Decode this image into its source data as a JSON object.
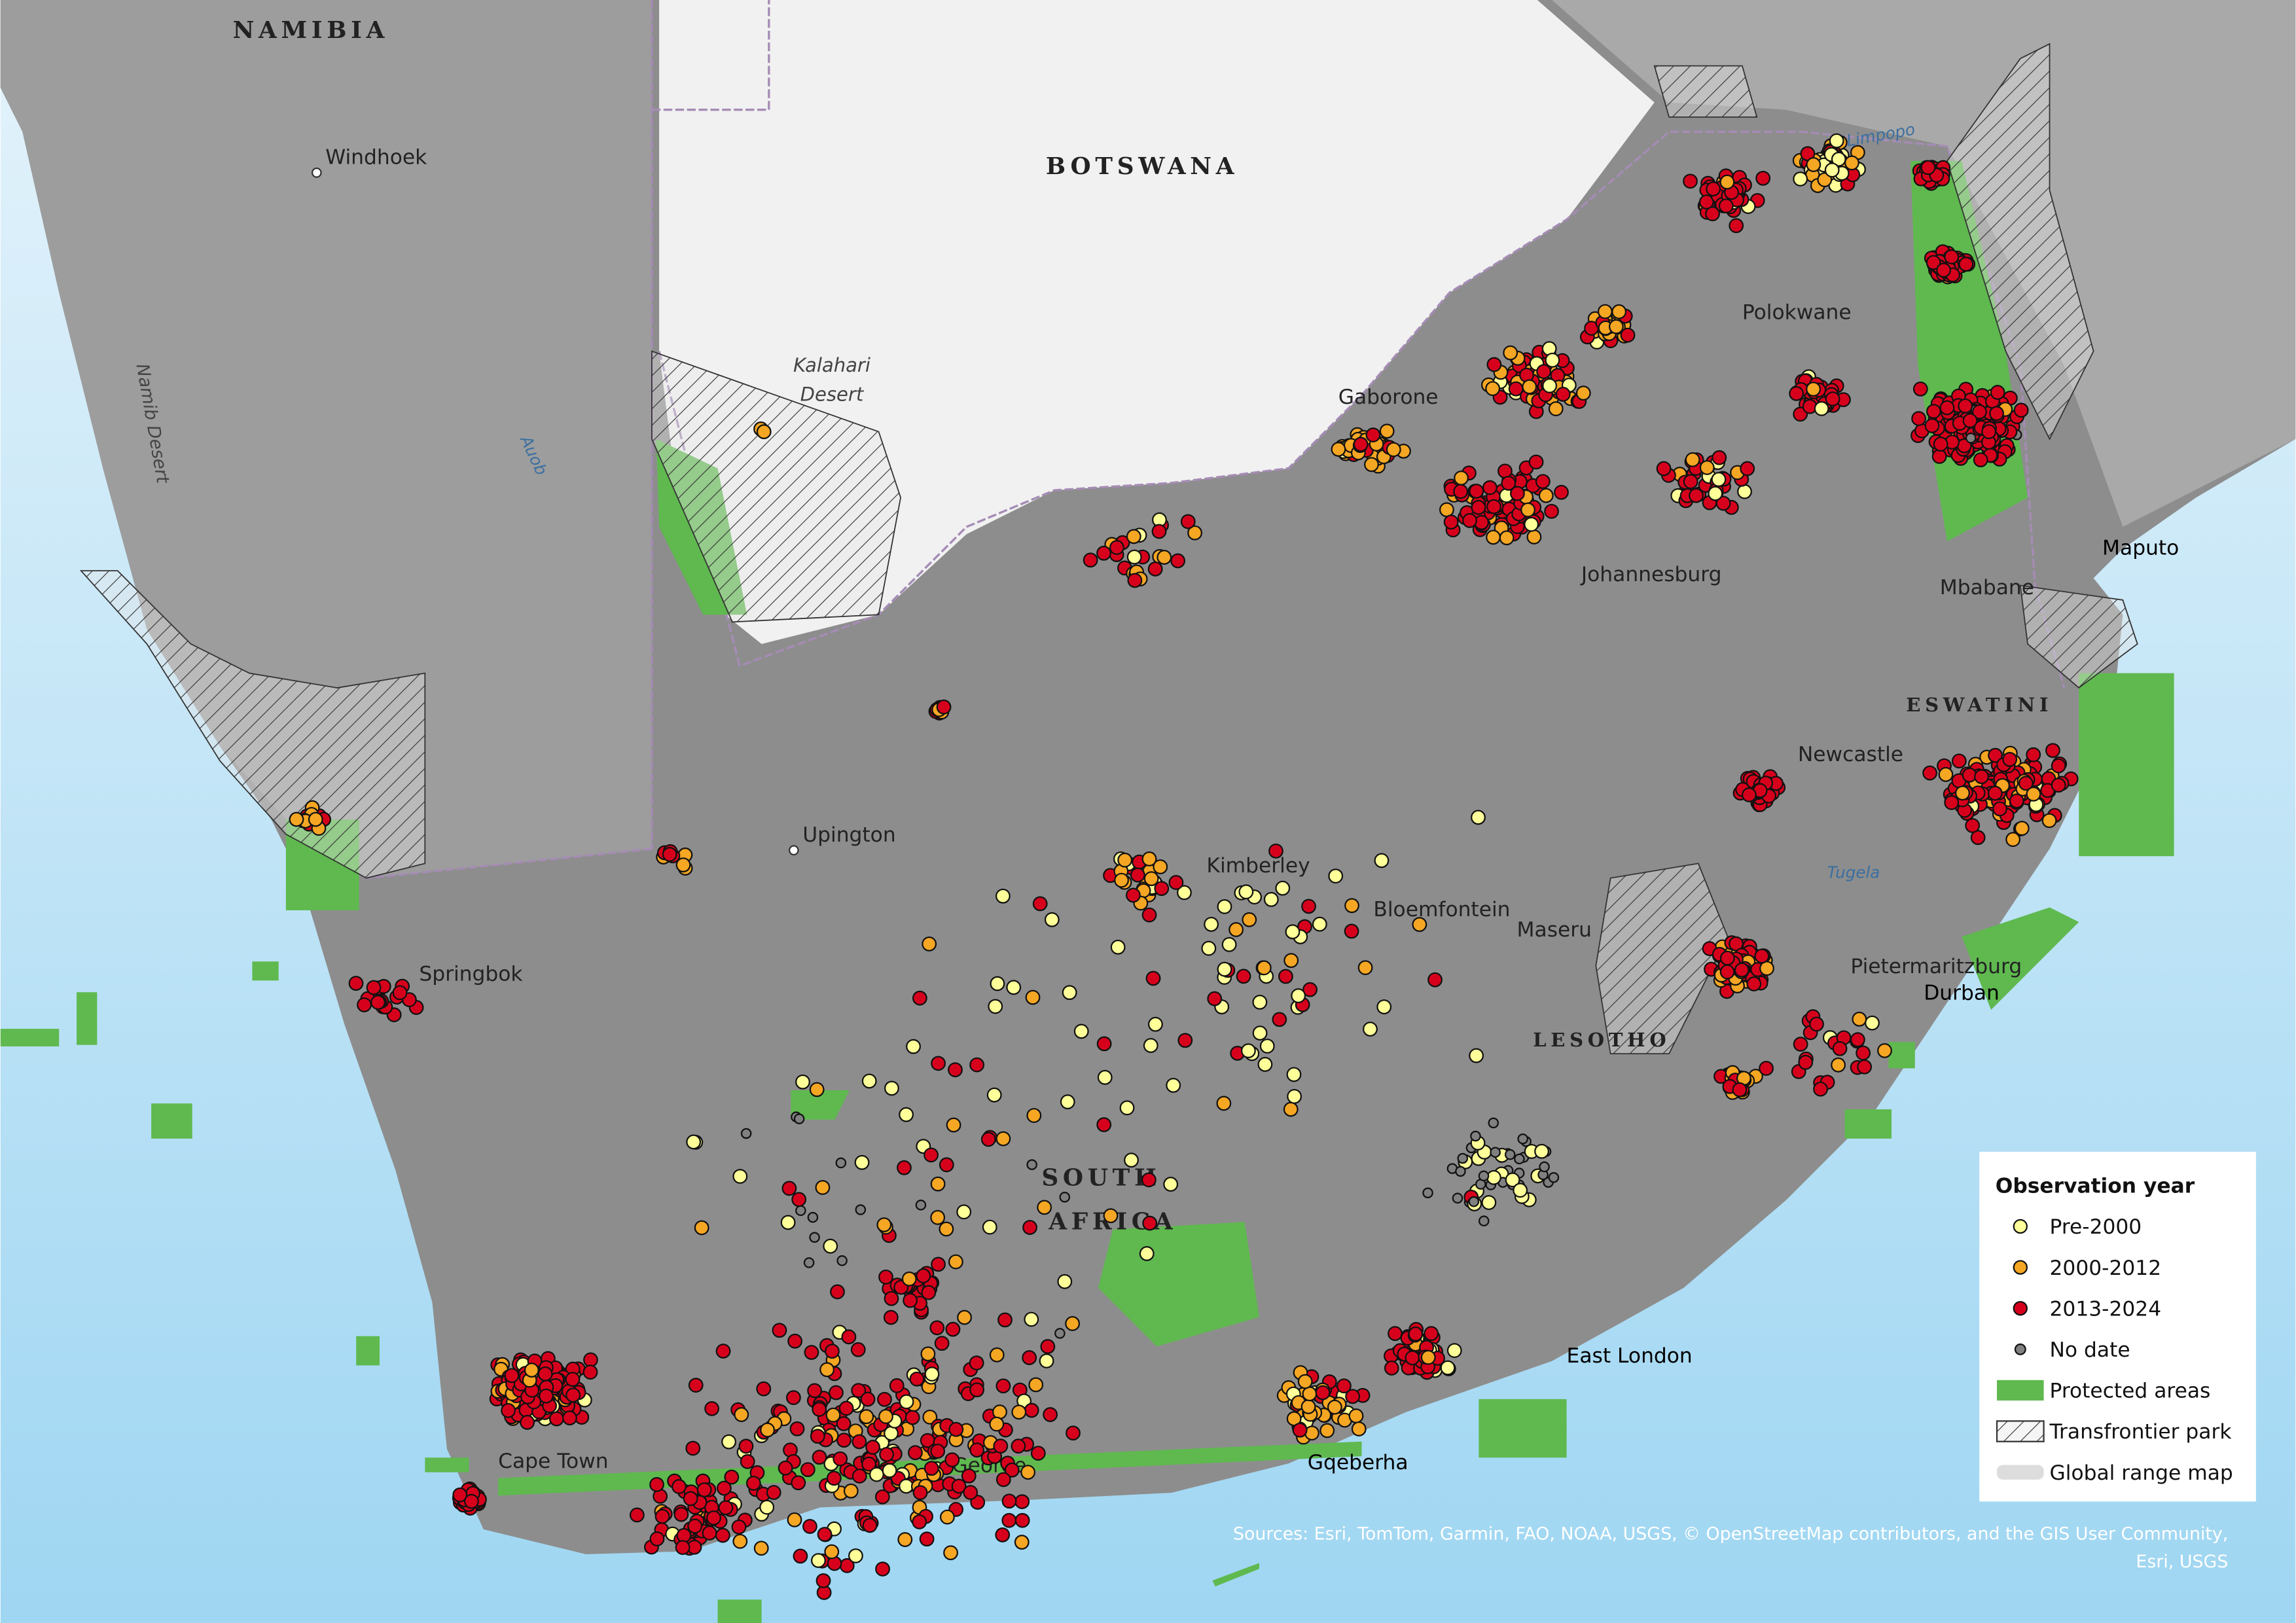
{
  "labels": {
    "namibia": "NAMIBIA",
    "windhoek": "Windhoek",
    "botswana": "BOTSWANA",
    "kalahari_1": "Kalahari",
    "kalahari_2": "Desert",
    "namib": "Namib Desert",
    "auob": "Auob",
    "limpopo": "Limpopo",
    "polokwane": "Polokwane",
    "gaborone": "Gaborone",
    "johannesburg": "Johannesburg",
    "maputo": "Maputo",
    "mbabane": "Mbabane",
    "eswatini": "ESWATINI",
    "newcastle": "Newcastle",
    "tugela": "Tugela",
    "upington": "Upington",
    "kimberley": "Kimberley",
    "bloemfontein": "Bloemfontein",
    "maseru": "Maseru",
    "pietermaritzburg": "Pietermaritzburg",
    "durban": "Durban",
    "lesotho": "LESOTHO",
    "springbok": "Springbok",
    "south_1": "SOUTH",
    "south_2": "AFRICA",
    "east_london": "East London",
    "cape_town": "Cape Town",
    "george": "George",
    "gqeberha": "Gqeberha"
  },
  "legend": {
    "title": "Observation year",
    "items": [
      {
        "label": "Pre-2000",
        "color": "#ffff99"
      },
      {
        "label": "2000-2012",
        "color": "#f5a623"
      },
      {
        "label": "2013-2024",
        "color": "#d7001c"
      },
      {
        "label": "No date",
        "color": "#808080"
      },
      {
        "label": "Protected areas",
        "color": "#5fb94f"
      },
      {
        "label": "Transfrontier park"
      },
      {
        "label": "Global range map"
      }
    ]
  },
  "sources": [
    "Sources: Esri, TomTom, Garmin, FAO, NOAA, USGS, © OpenStreetMap contributors, and the GIS User Community,",
    "Esri, USGS"
  ]
}
